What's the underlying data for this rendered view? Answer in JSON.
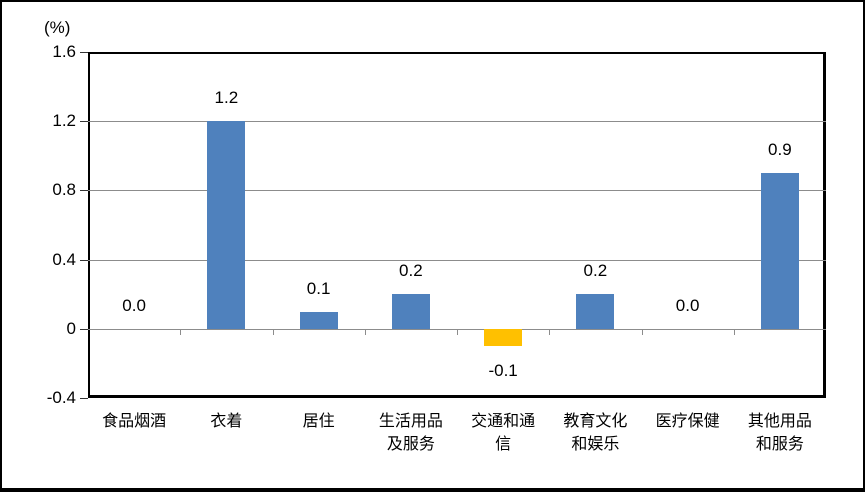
{
  "figure": {
    "background": "#ffffff",
    "frame_color": "#000000"
  },
  "chart_data": {
    "type": "bar",
    "title": "",
    "ylabel": "(%)",
    "xlabel": "",
    "categories": [
      "食品烟酒",
      "衣着",
      "居住",
      "生活用品及服务",
      "交通和通信",
      "教育文化和娱乐",
      "医疗保健",
      "其他用品和服务"
    ],
    "category_display": [
      "食品烟酒",
      "衣着",
      "居住",
      "生活用品\n及服务",
      "交通和通\n信",
      "教育文化\n和娱乐",
      "医疗保健",
      "其他用品\n和服务"
    ],
    "values": [
      0.0,
      1.2,
      0.1,
      0.2,
      -0.1,
      0.2,
      0.0,
      0.9
    ],
    "data_labels": [
      "0.0",
      "1.2",
      "0.1",
      "0.2",
      "-0.1",
      "0.2",
      "0.0",
      "0.9"
    ],
    "ylim": [
      -0.4,
      1.6
    ],
    "yticks": [
      1.6,
      1.2,
      0.8,
      0.4,
      0,
      -0.4
    ],
    "ytick_labels": [
      "1.6",
      "1.2",
      "0.8",
      "0.4",
      "0",
      "-0.4"
    ],
    "grid": true,
    "legend": "none",
    "colors": {
      "positive_bar": "#4F81BD",
      "negative_bar": "#FFC000",
      "gridline": "#8C8C8C",
      "axis": "#000000",
      "text": "#000000"
    }
  }
}
